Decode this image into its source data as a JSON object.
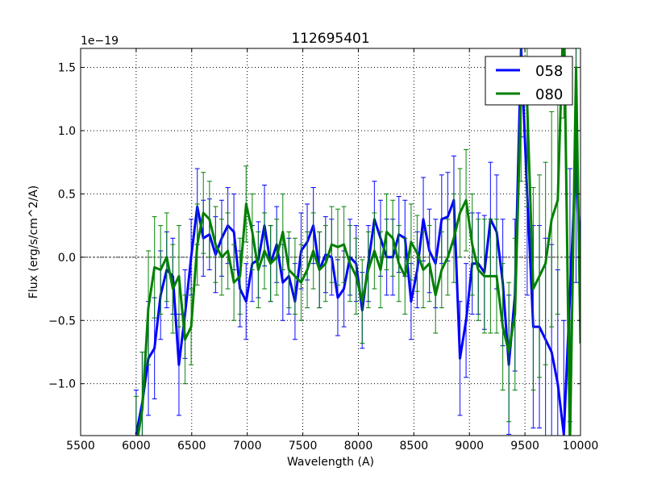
{
  "chart_data": {
    "type": "line",
    "title": "112695401",
    "xlabel": "Wavelength (A)",
    "ylabel": "Flux (erg/s/cm^2/A)",
    "y_offset_text": "1e−19",
    "xlim": [
      5500,
      10000
    ],
    "ylim": [
      -1.41,
      1.65
    ],
    "xticks": [
      5500,
      6000,
      6500,
      7000,
      7500,
      8000,
      8500,
      9000,
      9500,
      10000
    ],
    "xtick_labels": [
      "5500",
      "6000",
      "6500",
      "7000",
      "7500",
      "8000",
      "8500",
      "9000",
      "9500",
      "10000"
    ],
    "yticks": [
      -1.0,
      -0.5,
      0.0,
      0.5,
      1.0,
      1.5
    ],
    "ytick_labels": [
      "−1.0",
      "−0.5",
      "0.0",
      "0.5",
      "1.0",
      "1.5"
    ],
    "grid": true,
    "legend_position": "top-right",
    "x_start": 6000,
    "x_step": 55,
    "series": [
      {
        "name": "058",
        "color": "#0000ff",
        "values": [
          -1.4,
          -1.15,
          -0.8,
          -0.72,
          -0.3,
          -0.1,
          -0.15,
          -0.85,
          -0.45,
          0.0,
          0.4,
          0.15,
          0.18,
          0.02,
          0.15,
          0.25,
          0.2,
          -0.25,
          -0.35,
          -0.05,
          -0.02,
          0.25,
          -0.05,
          0.1,
          -0.2,
          -0.15,
          -0.35,
          0.05,
          0.12,
          0.25,
          -0.1,
          0.02,
          0.0,
          -0.32,
          -0.25,
          0.0,
          -0.05,
          -0.42,
          -0.05,
          0.3,
          0.15,
          0.0,
          0.0,
          0.18,
          0.15,
          -0.35,
          -0.1,
          0.3,
          0.05,
          -0.05,
          0.3,
          0.32,
          0.45,
          -0.8,
          -0.5,
          -0.05,
          -0.05,
          -0.12,
          0.3,
          0.2,
          -0.2,
          -0.85,
          -0.3,
          1.65,
          0.5,
          -0.55,
          -0.55,
          -0.65,
          -0.75,
          -1.0,
          -1.4,
          -0.3,
          0.8,
          -0.35
        ],
        "errors": [
          0.35,
          0.4,
          0.45,
          0.4,
          0.35,
          0.3,
          0.3,
          0.4,
          0.35,
          0.3,
          0.3,
          0.3,
          0.28,
          0.3,
          0.3,
          0.3,
          0.3,
          0.3,
          0.3,
          0.3,
          0.3,
          0.32,
          0.3,
          0.3,
          0.3,
          0.3,
          0.3,
          0.3,
          0.3,
          0.3,
          0.3,
          0.3,
          0.3,
          0.3,
          0.3,
          0.3,
          0.3,
          0.3,
          0.3,
          0.3,
          0.3,
          0.3,
          0.3,
          0.3,
          0.3,
          0.3,
          0.3,
          0.33,
          0.33,
          0.35,
          0.35,
          0.35,
          0.35,
          0.45,
          0.45,
          0.4,
          0.4,
          0.45,
          0.45,
          0.45,
          0.5,
          0.55,
          0.6,
          0.7,
          0.8,
          0.8,
          0.8,
          0.8,
          0.85,
          0.9,
          0.9,
          1.0,
          1.0,
          1.1
        ]
      },
      {
        "name": "080",
        "color": "#008000",
        "values": [
          -1.5,
          -1.2,
          -0.4,
          -0.08,
          -0.1,
          0.0,
          -0.25,
          -0.15,
          -0.65,
          -0.55,
          0.1,
          0.35,
          0.3,
          0.1,
          0.0,
          0.05,
          -0.2,
          -0.15,
          0.42,
          0.2,
          -0.1,
          0.05,
          -0.05,
          0.0,
          0.2,
          -0.1,
          -0.15,
          -0.2,
          -0.1,
          0.05,
          -0.1,
          -0.05,
          0.1,
          0.08,
          0.1,
          -0.05,
          -0.15,
          -0.35,
          -0.1,
          0.05,
          -0.1,
          0.2,
          0.15,
          -0.05,
          -0.15,
          0.12,
          0.03,
          -0.1,
          -0.05,
          -0.3,
          -0.1,
          0.0,
          0.15,
          0.35,
          0.45,
          0.1,
          -0.1,
          -0.15,
          -0.15,
          -0.15,
          -0.55,
          -0.75,
          -0.45,
          1.3,
          1.2,
          -0.25,
          -0.15,
          -0.05,
          0.3,
          0.45,
          2.0,
          -1.5,
          1.5,
          -1.5
        ],
        "errors": [
          0.4,
          0.45,
          0.45,
          0.4,
          0.35,
          0.35,
          0.35,
          0.4,
          0.35,
          0.3,
          0.32,
          0.32,
          0.3,
          0.3,
          0.3,
          0.3,
          0.3,
          0.3,
          0.3,
          0.3,
          0.3,
          0.3,
          0.3,
          0.3,
          0.3,
          0.3,
          0.3,
          0.3,
          0.3,
          0.3,
          0.3,
          0.3,
          0.3,
          0.3,
          0.3,
          0.3,
          0.3,
          0.33,
          0.3,
          0.3,
          0.3,
          0.3,
          0.3,
          0.3,
          0.3,
          0.3,
          0.3,
          0.3,
          0.3,
          0.3,
          0.3,
          0.3,
          0.35,
          0.35,
          0.4,
          0.4,
          0.4,
          0.45,
          0.45,
          0.45,
          0.5,
          0.55,
          0.6,
          0.7,
          0.8,
          0.8,
          0.8,
          0.8,
          0.85,
          0.9,
          0.9,
          1.0,
          1.0,
          1.1
        ]
      }
    ]
  }
}
